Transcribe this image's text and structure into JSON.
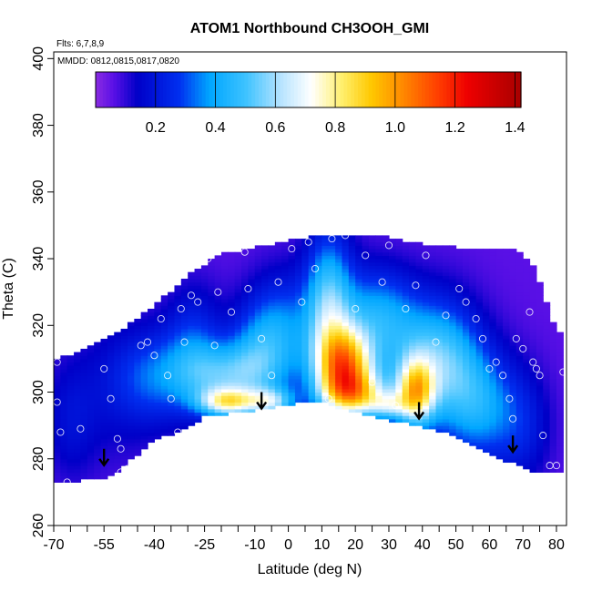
{
  "chart_data": {
    "type": "heatmap",
    "title": "ATOM1 Northbound CH3OOH_GMI",
    "subtitle_flights": "Flts: 6,7,8,9",
    "subtitle_dates": "MMDD: 0812,0815,0817,0820",
    "xlabel": "Latitude (deg N)",
    "ylabel": "Theta (C)",
    "xlim": [
      -70,
      83
    ],
    "ylim": [
      260,
      402
    ],
    "x_ticks": [
      -70,
      -65,
      -60,
      -55,
      -50,
      -45,
      -40,
      -35,
      -30,
      -25,
      -20,
      -15,
      -10,
      -5,
      0,
      5,
      10,
      15,
      20,
      25,
      30,
      35,
      40,
      45,
      50,
      55,
      60,
      65,
      70,
      75,
      80
    ],
    "x_tick_labels": [
      "-70",
      "-55",
      "-40",
      "-25",
      "-10",
      "0",
      "10",
      "20",
      "30",
      "40",
      "50",
      "60",
      "70",
      "80"
    ],
    "x_tick_label_values": [
      -70,
      -55,
      -40,
      -25,
      -10,
      0,
      10,
      20,
      30,
      40,
      50,
      60,
      70,
      80
    ],
    "y_ticks": [
      260,
      280,
      300,
      320,
      340,
      360,
      380,
      400
    ],
    "y_tick_labels": [
      "260",
      "280",
      "300",
      "320",
      "340",
      "360",
      "380",
      "400"
    ],
    "colorbar": {
      "range": [
        0,
        1.42
      ],
      "ticks": [
        0.2,
        0.4,
        0.6,
        0.8,
        1.0,
        1.2,
        1.4
      ],
      "tick_labels": [
        "0.2",
        "0.4",
        "0.6",
        "0.8",
        "1.0",
        "1.2",
        "1.4"
      ],
      "stops": [
        {
          "v": 0.0,
          "c": "#8a2be2"
        },
        {
          "v": 0.06,
          "c": "#5a10e6"
        },
        {
          "v": 0.14,
          "c": "#0000c8"
        },
        {
          "v": 0.28,
          "c": "#0030f0"
        },
        {
          "v": 0.38,
          "c": "#00a6ff"
        },
        {
          "v": 0.5,
          "c": "#3cc2ff"
        },
        {
          "v": 0.62,
          "c": "#b8e4ff"
        },
        {
          "v": 0.72,
          "c": "#ffffff"
        },
        {
          "v": 0.82,
          "c": "#fff070"
        },
        {
          "v": 0.92,
          "c": "#ffc800"
        },
        {
          "v": 1.02,
          "c": "#ff8c00"
        },
        {
          "v": 1.14,
          "c": "#ff4000"
        },
        {
          "v": 1.24,
          "c": "#ee0000"
        },
        {
          "v": 1.42,
          "c": "#a80000"
        }
      ]
    },
    "field_base": 0.06,
    "surface_outline": [
      [
        -70,
        273
      ],
      [
        -53,
        275
      ],
      [
        -40,
        286
      ],
      [
        -32,
        289
      ],
      [
        -25,
        293
      ],
      [
        -10,
        295
      ],
      [
        8,
        298
      ],
      [
        18,
        295
      ],
      [
        35,
        291
      ],
      [
        48,
        288
      ],
      [
        62,
        281
      ],
      [
        72,
        277
      ],
      [
        80,
        276
      ]
    ],
    "top_outline": [
      [
        -70,
        309
      ],
      [
        -60,
        313
      ],
      [
        -50,
        318
      ],
      [
        -42,
        324
      ],
      [
        -35,
        330
      ],
      [
        -28,
        336
      ],
      [
        -20,
        341
      ],
      [
        -10,
        343
      ],
      [
        0,
        345
      ],
      [
        10,
        347
      ],
      [
        20,
        347
      ],
      [
        30,
        346
      ],
      [
        40,
        344
      ],
      [
        50,
        343
      ],
      [
        60,
        342
      ],
      [
        68,
        343
      ],
      [
        73,
        338
      ],
      [
        76,
        330
      ],
      [
        78,
        323
      ],
      [
        80,
        318
      ]
    ],
    "blobs": [
      {
        "lat": -65,
        "th": 290,
        "slat": 5,
        "sth": 12,
        "a": 0.08
      },
      {
        "lat": -55,
        "th": 298,
        "slat": 12,
        "sth": 15,
        "a": 0.08
      },
      {
        "lat": -40,
        "th": 305,
        "slat": 9,
        "sth": 10,
        "a": 0.22
      },
      {
        "lat": -28,
        "th": 315,
        "slat": 6,
        "sth": 12,
        "a": 0.18
      },
      {
        "lat": -18,
        "th": 305,
        "slat": 10,
        "sth": 7,
        "a": 0.38
      },
      {
        "lat": -10,
        "th": 313,
        "slat": 6,
        "sth": 10,
        "a": 0.18
      },
      {
        "lat": -2,
        "th": 318,
        "slat": 7,
        "sth": 12,
        "a": 0.28
      },
      {
        "lat": 12,
        "th": 325,
        "slat": 5,
        "sth": 16,
        "a": 0.45
      },
      {
        "lat": 26,
        "th": 324,
        "slat": 8,
        "sth": 10,
        "a": 0.28
      },
      {
        "lat": 40,
        "th": 312,
        "slat": 10,
        "sth": 12,
        "a": 0.3
      },
      {
        "lat": 48,
        "th": 305,
        "slat": 7,
        "sth": 14,
        "a": 0.24
      },
      {
        "lat": 58,
        "th": 296,
        "slat": 7,
        "sth": 12,
        "a": 0.28
      },
      {
        "lat": 70,
        "th": 290,
        "slat": 6,
        "sth": 12,
        "a": 0.15
      },
      {
        "lat": -18,
        "th": 297,
        "slat": 6,
        "sth": 3,
        "a": 0.55
      },
      {
        "lat": -5,
        "th": 297,
        "slat": 5,
        "sth": 3,
        "a": 0.4
      },
      {
        "lat": 17,
        "th": 308,
        "slat": 6,
        "sth": 8,
        "a": 0.8
      },
      {
        "lat": 20,
        "th": 299,
        "slat": 7,
        "sth": 5,
        "a": 0.55
      },
      {
        "lat": 38,
        "th": 300,
        "slat": 4,
        "sth": 7,
        "a": 0.65
      },
      {
        "lat": 30,
        "th": 296,
        "slat": 4,
        "sth": 3,
        "a": 0.3
      }
    ],
    "obs_points": [
      [
        -69,
        309
      ],
      [
        -69,
        297
      ],
      [
        -68,
        288
      ],
      [
        -66,
        273
      ],
      [
        -62,
        289
      ],
      [
        -55,
        307
      ],
      [
        -53,
        298
      ],
      [
        -51,
        286
      ],
      [
        -50,
        283
      ],
      [
        -48,
        277
      ],
      [
        -50,
        276
      ],
      [
        -44,
        314
      ],
      [
        -42,
        315
      ],
      [
        -40,
        311
      ],
      [
        -38,
        322
      ],
      [
        -36,
        305
      ],
      [
        -35,
        298
      ],
      [
        -33,
        288
      ],
      [
        -32,
        325
      ],
      [
        -31,
        315
      ],
      [
        -29,
        329
      ],
      [
        -27,
        327
      ],
      [
        -24,
        340
      ],
      [
        -22,
        314
      ],
      [
        -21,
        330
      ],
      [
        -17,
        324
      ],
      [
        -13,
        342
      ],
      [
        -12,
        331
      ],
      [
        -8,
        316
      ],
      [
        -5,
        305
      ],
      [
        -3,
        333
      ],
      [
        1,
        343
      ],
      [
        4,
        327
      ],
      [
        6,
        345
      ],
      [
        8,
        337
      ],
      [
        12,
        298
      ],
      [
        13,
        346
      ],
      [
        17,
        347
      ],
      [
        20,
        325
      ],
      [
        23,
        341
      ],
      [
        25,
        303
      ],
      [
        28,
        333
      ],
      [
        30,
        344
      ],
      [
        32,
        296
      ],
      [
        35,
        325
      ],
      [
        38,
        332
      ],
      [
        41,
        341
      ],
      [
        44,
        315
      ],
      [
        47,
        323
      ],
      [
        51,
        331
      ],
      [
        53,
        327
      ],
      [
        56,
        322
      ],
      [
        58,
        316
      ],
      [
        60,
        307
      ],
      [
        62,
        309
      ],
      [
        64,
        305
      ],
      [
        66,
        298
      ],
      [
        67,
        292
      ],
      [
        68,
        316
      ],
      [
        70,
        313
      ],
      [
        72,
        324
      ],
      [
        73,
        309
      ],
      [
        74,
        307
      ],
      [
        75,
        305
      ],
      [
        76,
        287
      ],
      [
        78,
        278
      ],
      [
        80,
        278
      ],
      [
        82,
        306
      ]
    ],
    "arrows": [
      [
        -55,
        283
      ],
      [
        -8,
        300
      ],
      [
        39,
        297
      ],
      [
        67,
        287
      ]
    ]
  }
}
